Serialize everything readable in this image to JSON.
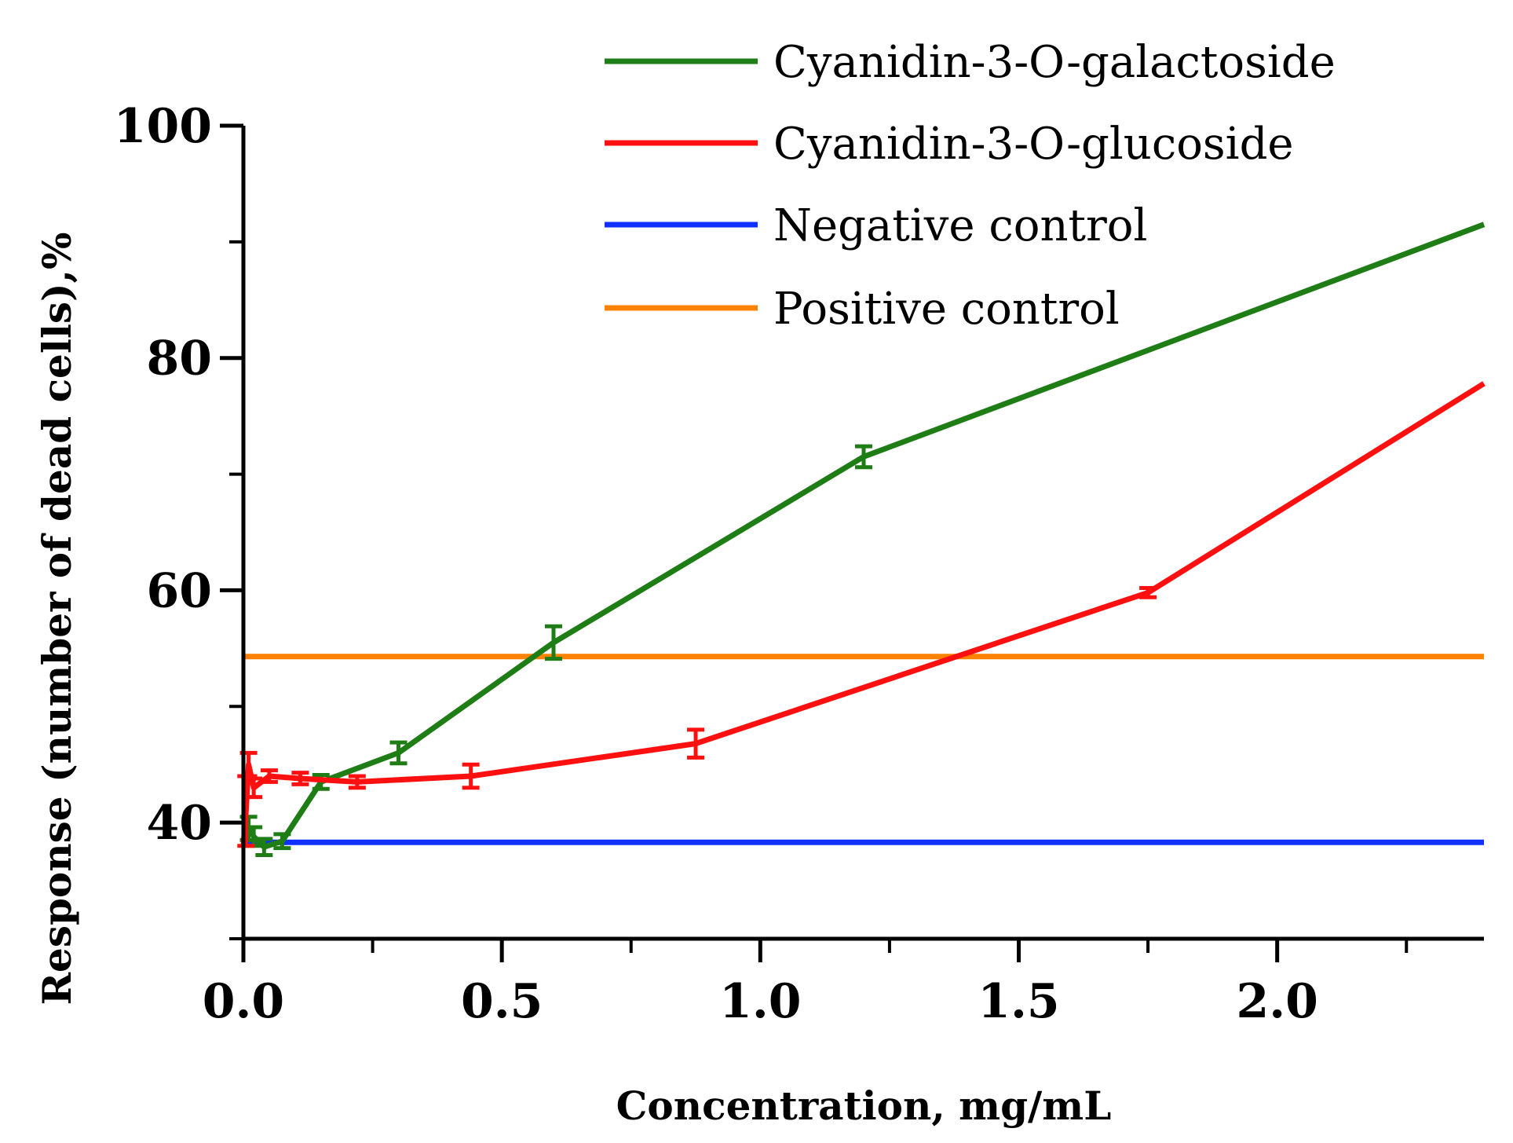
{
  "chart_data": {
    "type": "line",
    "title": "",
    "xlabel": "Concentration, mg/mL",
    "ylabel": "Response (number of dead cells),%",
    "xlim": [
      0.0,
      2.4
    ],
    "ylim": [
      30,
      100
    ],
    "x_ticks": [
      {
        "value": 0.0,
        "label": "0.0"
      },
      {
        "value": 0.5,
        "label": "0.5"
      },
      {
        "value": 1.0,
        "label": "1.0"
      },
      {
        "value": 1.5,
        "label": "1.5"
      },
      {
        "value": 2.0,
        "label": "2.0"
      }
    ],
    "x_minor_ticks": [
      0.25,
      0.75,
      1.25,
      1.75,
      2.25
    ],
    "y_ticks": [
      {
        "value": 40,
        "label": "40"
      },
      {
        "value": 60,
        "label": "60"
      },
      {
        "value": 80,
        "label": "80"
      },
      {
        "value": 100,
        "label": "100"
      }
    ],
    "y_minor_ticks": [
      30,
      50,
      70,
      90
    ],
    "legend_position": "top-right",
    "series": [
      {
        "name": "Cyanidin-3-O-galactoside",
        "color": "#1e7d14",
        "points": [
          {
            "x": 0.0,
            "y": 38.5,
            "err": 0
          },
          {
            "x": 0.01,
            "y": 39.5,
            "err": 1.0
          },
          {
            "x": 0.02,
            "y": 38.8,
            "err": 0.8
          },
          {
            "x": 0.04,
            "y": 37.9,
            "err": 0.7
          },
          {
            "x": 0.075,
            "y": 38.4,
            "err": 0.6
          },
          {
            "x": 0.15,
            "y": 43.5,
            "err": 0.6
          },
          {
            "x": 0.3,
            "y": 46.0,
            "err": 0.9
          },
          {
            "x": 0.6,
            "y": 55.5,
            "err": 1.4
          },
          {
            "x": 1.2,
            "y": 71.5,
            "err": 0.9
          },
          {
            "x": 2.4,
            "y": 91.5,
            "err": 0
          }
        ]
      },
      {
        "name": "Cyanidin-3-O-glucoside",
        "color": "#ff1010",
        "points": [
          {
            "x": 0.0,
            "y": 38.0,
            "err": 0
          },
          {
            "x": 0.005,
            "y": 41.0,
            "err": 3.0
          },
          {
            "x": 0.01,
            "y": 45.0,
            "err": 1.0
          },
          {
            "x": 0.02,
            "y": 43.0,
            "err": 0.8
          },
          {
            "x": 0.05,
            "y": 44.0,
            "err": 0.5
          },
          {
            "x": 0.11,
            "y": 43.8,
            "err": 0.5
          },
          {
            "x": 0.22,
            "y": 43.5,
            "err": 0.5
          },
          {
            "x": 0.44,
            "y": 44.0,
            "err": 1.0
          },
          {
            "x": 0.875,
            "y": 46.8,
            "err": 1.2
          },
          {
            "x": 1.75,
            "y": 59.8,
            "err": 0.4
          },
          {
            "x": 2.4,
            "y": 77.8,
            "err": 0
          }
        ]
      },
      {
        "name": "Negative control",
        "color": "#1030ff",
        "constant": 38.3
      },
      {
        "name": "Positive control",
        "color": "#ff8200",
        "constant": 54.3
      }
    ]
  }
}
